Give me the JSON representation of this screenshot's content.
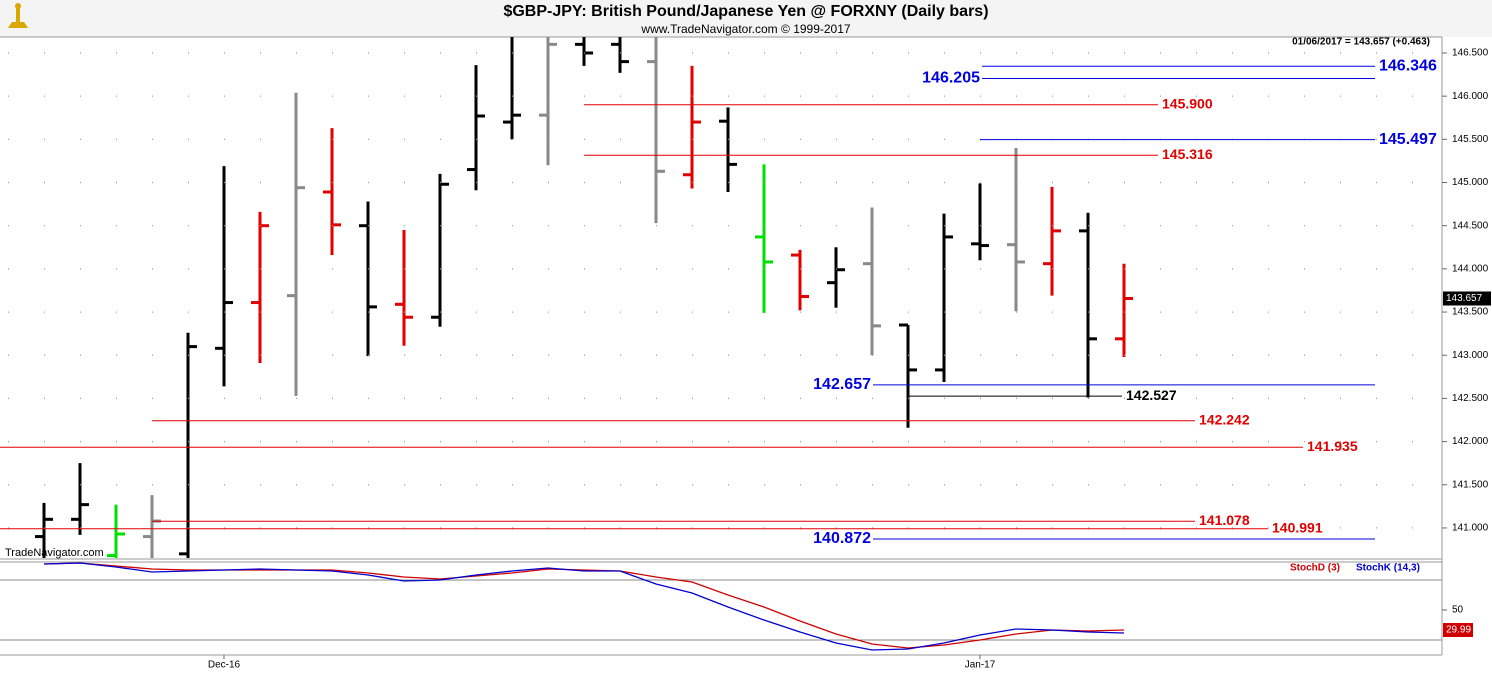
{
  "chart_data": [
    {
      "type": "ohlc",
      "title": "$GBP-JPY:  British Pound/Japanese Yen @ FORXNY  (Daily bars)",
      "subtitle": "www.TradeNavigator.com © 1999-2017",
      "info": "01/06/2017 = 143.657 (+0.463)",
      "watermark": "TradeNavigator.com",
      "categories": [
        null,
        null,
        null,
        null,
        null,
        "Dec-16",
        null,
        null,
        null,
        null,
        null,
        null,
        null,
        null,
        null,
        null,
        null,
        null,
        null,
        null,
        null,
        null,
        null,
        null,
        null,
        null,
        "Jan-17",
        null,
        null,
        null,
        null
      ],
      "open": [
        140.9,
        141.1,
        140.68,
        140.9,
        140.7,
        143.08,
        143.61,
        143.69,
        144.89,
        144.5,
        143.59,
        143.44,
        145.15,
        145.7,
        145.78,
        146.6,
        146.6,
        146.4,
        145.09,
        145.71,
        144.37,
        144.16,
        143.84,
        144.06,
        143.35,
        142.83,
        144.29,
        144.28,
        144.06,
        144.44,
        143.19
      ],
      "high": [
        141.29,
        141.75,
        141.27,
        141.38,
        143.26,
        145.19,
        144.66,
        146.04,
        145.63,
        144.78,
        144.45,
        145.1,
        146.36,
        146.69,
        146.69,
        146.69,
        146.69,
        146.69,
        146.35,
        145.87,
        145.21,
        144.22,
        144.25,
        144.71,
        143.35,
        144.64,
        144.99,
        145.4,
        144.95,
        144.65,
        144.06
      ],
      "low": [
        140.6,
        140.92,
        140.6,
        140.6,
        140.6,
        142.64,
        142.91,
        142.53,
        144.16,
        142.99,
        143.11,
        143.33,
        144.91,
        145.5,
        145.2,
        146.35,
        146.27,
        144.53,
        144.93,
        144.89,
        143.49,
        143.52,
        143.55,
        143.0,
        142.16,
        142.69,
        144.1,
        143.51,
        143.69,
        142.51,
        142.98
      ],
      "close": [
        141.1,
        141.27,
        140.93,
        141.08,
        143.1,
        143.61,
        144.5,
        144.94,
        144.51,
        143.56,
        143.44,
        144.98,
        145.77,
        145.78,
        146.6,
        146.5,
        146.4,
        145.13,
        145.7,
        145.21,
        144.08,
        143.68,
        143.99,
        143.34,
        142.83,
        144.37,
        144.27,
        144.08,
        144.44,
        143.19,
        143.657
      ],
      "colors": [
        "#000000",
        "#000000",
        "#00e000",
        "#888888",
        "#000000",
        "#000000",
        "#e00000",
        "#888888",
        "#e00000",
        "#000000",
        "#e00000",
        "#000000",
        "#000000",
        "#000000",
        "#888888",
        "#000000",
        "#000000",
        "#888888",
        "#e00000",
        "#000000",
        "#00e000",
        "#e00000",
        "#000000",
        "#888888",
        "#000000",
        "#000000",
        "#000000",
        "#888888",
        "#e00000",
        "#000000",
        "#e00000"
      ],
      "ylim": [
        140.652,
        146.685
      ],
      "yticks": [
        {
          "value": 141,
          "label": "141.000"
        },
        {
          "value": 141.5,
          "label": "141.500"
        },
        {
          "value": 142,
          "label": "142.000"
        },
        {
          "value": 142.5,
          "label": "142.500"
        },
        {
          "value": 143,
          "label": "143.000"
        },
        {
          "value": 143.5,
          "label": "143.500"
        },
        {
          "value": 144,
          "label": "144.000"
        },
        {
          "value": 144.5,
          "label": "144.500"
        },
        {
          "value": 145,
          "label": "145.000"
        },
        {
          "value": 145.5,
          "label": "145.500"
        },
        {
          "value": 146,
          "label": "146.000"
        },
        {
          "value": 146.5,
          "label": "146.500"
        }
      ],
      "grid": true,
      "levels": [
        {
          "value": 146.346,
          "label": "146.346",
          "color": "#0000e0",
          "side": "right"
        },
        {
          "value": 146.205,
          "label": "146.205",
          "color": "#0000e0",
          "side": "left"
        },
        {
          "value": 145.9,
          "label": "145.900",
          "color": "#e00000",
          "side": "right"
        },
        {
          "value": 145.497,
          "label": "145.497",
          "color": "#0000e0",
          "side": "right"
        },
        {
          "value": 145.316,
          "label": "145.316",
          "color": "#e00000",
          "side": "right"
        },
        {
          "value": 142.657,
          "label": "142.657",
          "color": "#0000e0",
          "side": "left"
        },
        {
          "value": 142.527,
          "label": "142.527",
          "color": "#000000",
          "side": "right"
        },
        {
          "value": 142.242,
          "label": "142.242",
          "color": "#e00000",
          "side": "right"
        },
        {
          "value": 141.935,
          "label": "141.935",
          "color": "#e00000",
          "side": "right"
        },
        {
          "value": 141.078,
          "label": "141.078",
          "color": "#e00000",
          "side": "right"
        },
        {
          "value": 140.991,
          "label": "140.991",
          "color": "#e00000",
          "side": "right"
        },
        {
          "value": 140.872,
          "label": "140.872",
          "color": "#0000e0",
          "side": "left"
        }
      ]
    },
    {
      "type": "line",
      "series": [
        {
          "name": "StochD (3)",
          "color": "#d00000",
          "values": [
            96,
            97,
            94,
            91,
            90,
            90,
            90,
            90,
            90,
            87,
            83,
            81,
            84,
            87,
            91,
            90,
            89,
            83,
            78,
            65,
            53,
            39,
            26,
            16,
            12,
            15,
            20,
            26,
            30,
            29,
            29.99
          ]
        },
        {
          "name": "StochK (14,3)",
          "color": "#0000d0",
          "values": [
            96,
            97,
            93,
            88,
            89,
            90,
            91,
            90,
            89,
            85,
            79,
            80,
            85,
            89,
            92,
            89,
            89,
            76,
            67,
            53,
            40,
            28,
            17,
            10,
            11,
            17,
            25,
            31,
            30,
            28,
            27
          ]
        }
      ],
      "ylim": [
        5,
        98
      ],
      "yticks": [
        50
      ],
      "bands": [
        20,
        80
      ]
    }
  ]
}
